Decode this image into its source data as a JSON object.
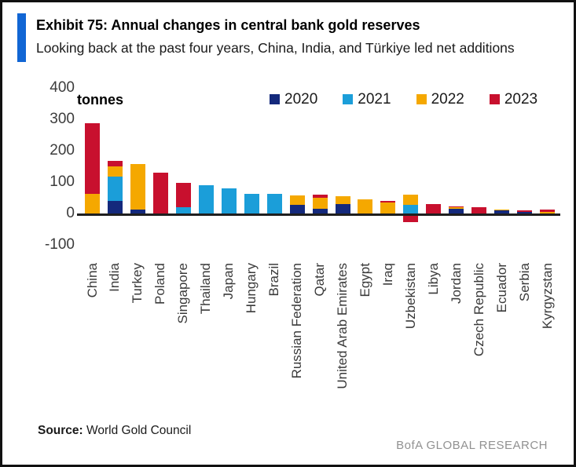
{
  "header": {
    "title": "Exhibit 75: Annual changes in central bank gold reserves",
    "subtitle": "Looking back at the past four years, China, India, and Türkiye led net additions"
  },
  "footer": {
    "source_label": "Source:",
    "source_text": " World Gold Council",
    "brand": "BofA GLOBAL RESEARCH"
  },
  "style_colors": {
    "accent_blue": "#1166d4",
    "axis_line": "#1f1f1f"
  },
  "chart_data": {
    "type": "bar",
    "stacked": true,
    "title": "Exhibit 75: Annual changes in central bank gold reserves",
    "ylabel": "tonnes",
    "xlabel": "",
    "grid": false,
    "legend_position": "top",
    "ylim": [
      -100,
      400
    ],
    "y_ticks": [
      400,
      300,
      200,
      100,
      0,
      -100
    ],
    "categories": [
      "China",
      "India",
      "Turkey",
      "Poland",
      "Singapore",
      "Thailand",
      "Japan",
      "Hungary",
      "Brazil",
      "Russian Federation",
      "Qatar",
      "United Arab Emirates",
      "Egypt",
      "Iraq",
      "Uzbekistan",
      "Libya",
      "Jordan",
      "Czech Republic",
      "Ecuador",
      "Serbia",
      "Kyrgyzstan"
    ],
    "series": [
      {
        "name": "2020",
        "color": "#14297c",
        "values": [
          0,
          41,
          13,
          0,
          0,
          0,
          0,
          0,
          0,
          27,
          14,
          30,
          0,
          0,
          0,
          0,
          15,
          0,
          10,
          6,
          0
        ]
      },
      {
        "name": "2021",
        "color": "#1b9ed9",
        "values": [
          0,
          77,
          0,
          0,
          21,
          90,
          81,
          63,
          62,
          0,
          0,
          0,
          0,
          0,
          28,
          0,
          0,
          0,
          0,
          0,
          -8
        ]
      },
      {
        "name": "2022",
        "color": "#f5a800",
        "values": [
          62,
          33,
          145,
          0,
          0,
          0,
          0,
          0,
          0,
          31,
          35,
          24,
          45,
          34,
          31,
          0,
          4,
          0,
          3,
          0,
          4
        ]
      },
      {
        "name": "2023",
        "color": "#c8102e",
        "values": [
          225,
          16,
          0,
          130,
          76,
          0,
          0,
          0,
          0,
          0,
          10,
          0,
          0,
          7,
          -28,
          30,
          4,
          20,
          0,
          3,
          8
        ]
      }
    ]
  }
}
